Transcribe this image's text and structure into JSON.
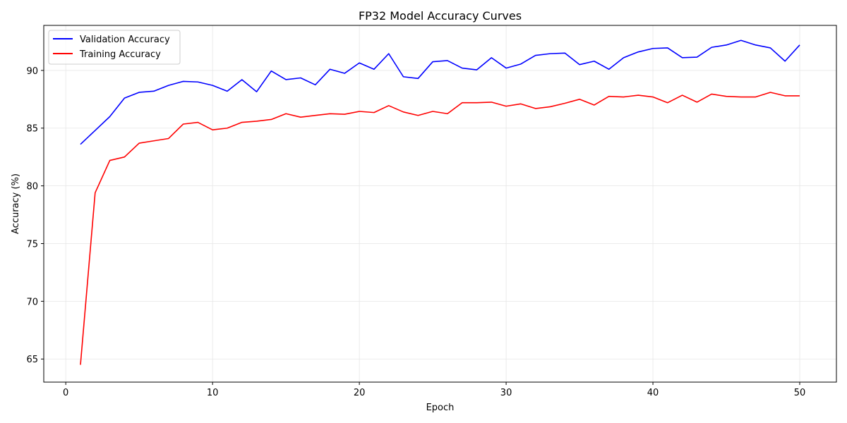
{
  "chart_data": {
    "type": "line",
    "title": "FP32 Model Accuracy Curves",
    "xlabel": "Epoch",
    "ylabel": "Accuracy (%)",
    "xlim": [
      -1.5,
      52.5
    ],
    "ylim": [
      63,
      93.9
    ],
    "xticks": [
      0,
      10,
      20,
      30,
      40,
      50
    ],
    "yticks": [
      65,
      70,
      75,
      80,
      85,
      90
    ],
    "grid": true,
    "legend_position": "top-left",
    "x": [
      1,
      2,
      3,
      4,
      5,
      6,
      7,
      8,
      9,
      10,
      11,
      12,
      13,
      14,
      15,
      16,
      17,
      18,
      19,
      20,
      21,
      22,
      23,
      24,
      25,
      26,
      27,
      28,
      29,
      30,
      31,
      32,
      33,
      34,
      35,
      36,
      37,
      38,
      39,
      40,
      41,
      42,
      43,
      44,
      45,
      46,
      47,
      48,
      49,
      50
    ],
    "series": [
      {
        "name": "Validation Accuracy",
        "color": "#0000ff",
        "values": [
          83.6,
          84.8,
          86.0,
          87.6,
          88.1,
          88.2,
          88.7,
          89.05,
          89.0,
          88.7,
          88.2,
          89.2,
          88.15,
          89.95,
          89.2,
          89.35,
          88.75,
          90.1,
          89.75,
          90.65,
          90.1,
          91.45,
          89.45,
          89.3,
          90.75,
          90.85,
          90.2,
          90.05,
          91.1,
          90.2,
          90.55,
          91.3,
          91.45,
          91.5,
          90.5,
          90.8,
          90.1,
          91.1,
          91.6,
          91.9,
          91.95,
          91.1,
          91.15,
          92.0,
          92.2,
          92.6,
          92.2,
          91.95,
          90.8,
          92.2
        ]
      },
      {
        "name": "Training Accuracy",
        "color": "#ff0000",
        "values": [
          64.5,
          79.4,
          82.2,
          82.5,
          83.7,
          83.9,
          84.1,
          85.35,
          85.5,
          84.85,
          85.0,
          85.5,
          85.6,
          85.75,
          86.25,
          85.95,
          86.1,
          86.25,
          86.2,
          86.45,
          86.35,
          86.95,
          86.4,
          86.1,
          86.45,
          86.25,
          87.2,
          87.2,
          87.25,
          86.9,
          87.1,
          86.7,
          86.85,
          87.15,
          87.5,
          87.0,
          87.75,
          87.7,
          87.85,
          87.7,
          87.2,
          87.85,
          87.25,
          87.95,
          87.75,
          87.7,
          87.7,
          88.1,
          87.8,
          87.8
        ]
      }
    ]
  }
}
